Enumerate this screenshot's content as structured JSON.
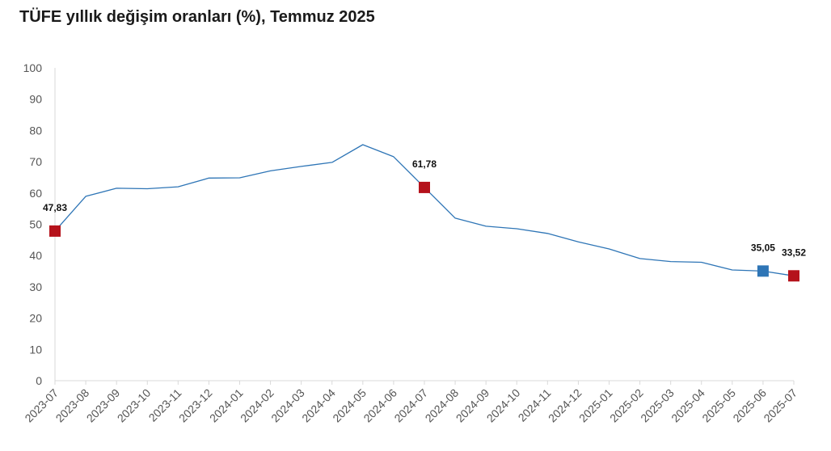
{
  "chart_data": {
    "type": "line",
    "title": "TÜFE yıllık değişim oranları (%), Temmuz 2025",
    "xlabel": "",
    "ylabel": "",
    "ylim": [
      0,
      100
    ],
    "yticks": [
      0,
      10,
      20,
      30,
      40,
      50,
      60,
      70,
      80,
      90,
      100
    ],
    "grid": false,
    "legend": "none",
    "categories": [
      "2023-07",
      "2023-08",
      "2023-09",
      "2023-10",
      "2023-11",
      "2023-12",
      "2024-01",
      "2024-02",
      "2024-03",
      "2024-04",
      "2024-05",
      "2024-06",
      "2024-07",
      "2024-08",
      "2024-09",
      "2024-10",
      "2024-11",
      "2024-12",
      "2025-01",
      "2025-02",
      "2025-03",
      "2025-04",
      "2025-05",
      "2025-06",
      "2025-07"
    ],
    "series": [
      {
        "values": [
          47.83,
          58.94,
          61.53,
          61.36,
          61.98,
          64.77,
          64.86,
          67.07,
          68.5,
          69.8,
          75.45,
          71.6,
          61.78,
          51.97,
          49.38,
          48.58,
          47.09,
          44.38,
          42.12,
          39.05,
          38.1,
          37.86,
          35.41,
          35.05,
          33.52
        ],
        "color": "#2e75b6"
      }
    ],
    "highlights": [
      {
        "index": 0,
        "label": "47,83",
        "color": "#b5121b"
      },
      {
        "index": 12,
        "label": "61,78",
        "color": "#b5121b"
      },
      {
        "index": 23,
        "label": "35,05",
        "color": "#2e75b6"
      },
      {
        "index": 24,
        "label": "33,52",
        "color": "#b5121b"
      }
    ],
    "axis_color": "#d9d9d9"
  }
}
